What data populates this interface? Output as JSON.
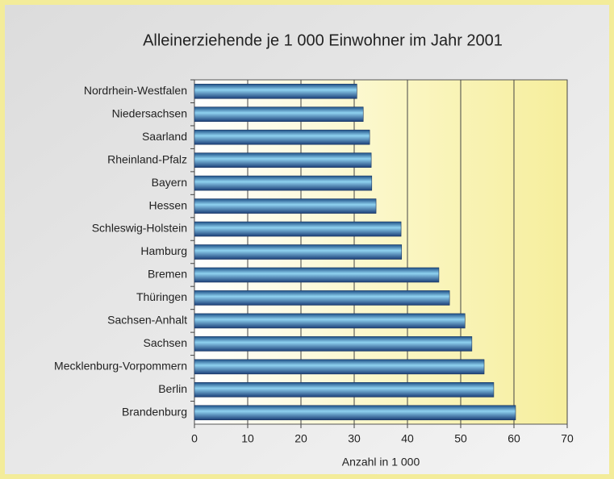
{
  "chart_data": {
    "type": "bar",
    "orientation": "horizontal",
    "title": "Alleinerziehende je 1 000 Einwohner im Jahr 2001",
    "x_label": "Anzahl in 1 000",
    "categories": [
      "Nordrhein-Westfalen",
      "Niedersachsen",
      "Saarland",
      "Rheinland-Pfalz",
      "Bayern",
      "Hessen",
      "Schleswig-Holstein",
      "Hamburg",
      "Bremen",
      "Thüringen",
      "Sachsen-Anhalt",
      "Sachsen",
      "Mecklenburg-Vorpommern",
      "Berlin",
      "Brandenburg"
    ],
    "values": [
      30.5,
      31.7,
      32.9,
      33.2,
      33.3,
      34.1,
      38.8,
      38.9,
      45.9,
      47.9,
      50.8,
      52.1,
      54.4,
      56.2,
      60.3
    ],
    "color": "#3a8fc4",
    "xlim": [
      0,
      70
    ],
    "xticks": [
      0,
      10,
      20,
      30,
      40,
      50,
      60,
      70
    ],
    "grid": true
  }
}
